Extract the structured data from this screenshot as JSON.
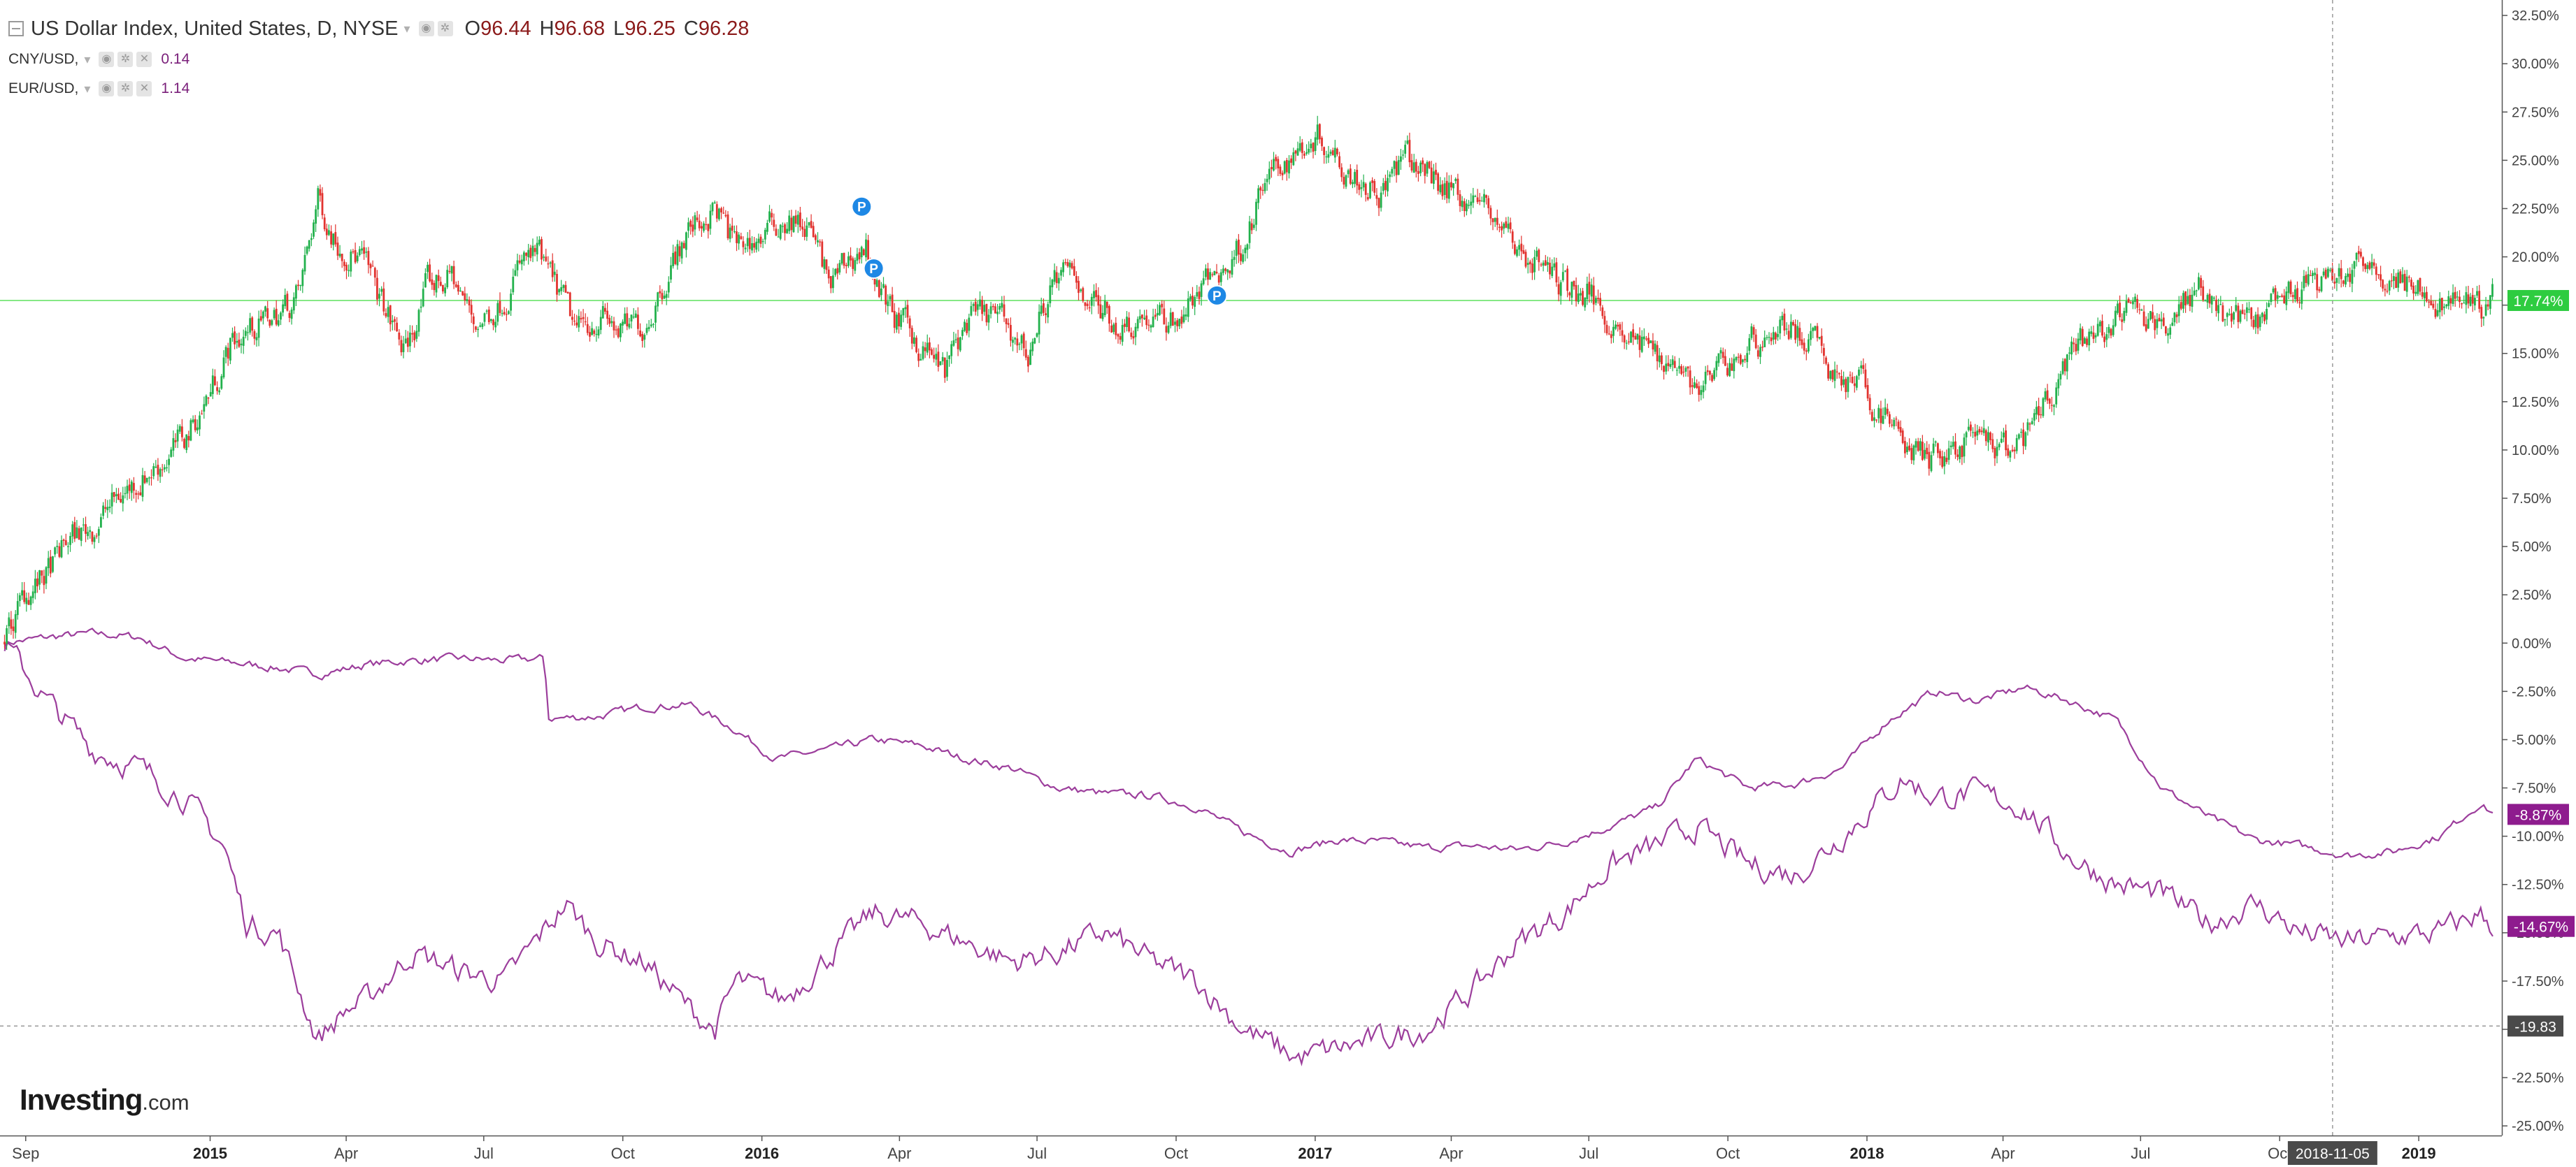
{
  "legend": {
    "main": {
      "title": "US Dollar Index, United States, D, NYSE",
      "o_label": "O",
      "o": "96.44",
      "h_label": "H",
      "h": "96.68",
      "l_label": "L",
      "l": "96.25",
      "c_label": "C",
      "c": "96.28"
    },
    "cny": {
      "name": "CNY/USD,",
      "value": "0.14"
    },
    "eur": {
      "name": "EUR/USD,",
      "value": "1.14"
    }
  },
  "logo": {
    "name": "Investing",
    "domain": ".com"
  },
  "crosshair": {
    "date_label": "2018-11-05",
    "price_label": "-19.83"
  },
  "colors": {
    "up": "#22b14c",
    "down": "#e2332f",
    "series": "#9c3e9c",
    "price_line": "#86e886",
    "last_green": "#2ecc40",
    "last_purple": "#8e1c8e",
    "axis_text": "#444444"
  },
  "chart_data": {
    "type": "candlestick-with-lines",
    "x_axis": {
      "range": [
        "2014-08-15",
        "2019-02-25"
      ],
      "ticks": [
        {
          "label": "Sep",
          "date": "2014-09-01",
          "bold": false
        },
        {
          "label": "2015",
          "date": "2015-01-01",
          "bold": true
        },
        {
          "label": "Apr",
          "date": "2015-04-01",
          "bold": false
        },
        {
          "label": "Jul",
          "date": "2015-07-01",
          "bold": false
        },
        {
          "label": "Oct",
          "date": "2015-10-01",
          "bold": false
        },
        {
          "label": "2016",
          "date": "2016-01-01",
          "bold": true
        },
        {
          "label": "Apr",
          "date": "2016-04-01",
          "bold": false
        },
        {
          "label": "Jul",
          "date": "2016-07-01",
          "bold": false
        },
        {
          "label": "Oct",
          "date": "2016-10-01",
          "bold": false
        },
        {
          "label": "2017",
          "date": "2017-01-01",
          "bold": true
        },
        {
          "label": "Apr",
          "date": "2017-04-01",
          "bold": false
        },
        {
          "label": "Jul",
          "date": "2017-07-01",
          "bold": false
        },
        {
          "label": "Oct",
          "date": "2017-10-01",
          "bold": false
        },
        {
          "label": "2018",
          "date": "2018-01-01",
          "bold": true
        },
        {
          "label": "Apr",
          "date": "2018-04-01",
          "bold": false
        },
        {
          "label": "Jul",
          "date": "2018-07-01",
          "bold": false
        },
        {
          "label": "Oct",
          "date": "2018-10-01",
          "bold": false
        },
        {
          "label": "2019",
          "date": "2019-01-01",
          "bold": true
        }
      ]
    },
    "y_axis": {
      "unit": "%",
      "range": [
        -25.5,
        33.3
      ],
      "ticks": [
        32.5,
        30,
        27.5,
        25,
        22.5,
        20,
        17.5,
        15,
        12.5,
        10,
        7.5,
        5,
        2.5,
        0,
        -2.5,
        -5,
        -7.5,
        -10,
        -12.5,
        -15,
        -17.5,
        -20,
        -22.5,
        -25
      ],
      "tick_labels": [
        "32.50%",
        "30.00%",
        "27.50%",
        "25.00%",
        "22.50%",
        "20.00%",
        "17.50%",
        "15.00%",
        "12.50%",
        "10.00%",
        "7.50%",
        "5.00%",
        "2.50%",
        "0.00%",
        "-2.50%",
        "-5.00%",
        "-7.50%",
        "-10.00%",
        "-12.50%",
        "-15.00%",
        "-17.50%",
        "-20.00%",
        "-22.50%",
        "-25.00%"
      ]
    },
    "series": [
      {
        "name": "US Dollar Index",
        "style": "candles",
        "dates": [
          "2014-08-18",
          "2014-09-01",
          "2014-09-15",
          "2014-10-01",
          "2014-10-15",
          "2014-11-01",
          "2014-11-15",
          "2014-12-01",
          "2014-12-15",
          "2015-01-01",
          "2015-01-15",
          "2015-02-01",
          "2015-02-15",
          "2015-03-01",
          "2015-03-13",
          "2015-03-25",
          "2015-04-10",
          "2015-04-25",
          "2015-05-10",
          "2015-05-25",
          "2015-06-10",
          "2015-06-25",
          "2015-07-10",
          "2015-07-25",
          "2015-08-05",
          "2015-08-20",
          "2015-09-01",
          "2015-09-15",
          "2015-10-01",
          "2015-10-15",
          "2015-11-01",
          "2015-11-15",
          "2015-12-01",
          "2015-12-15",
          "2016-01-01",
          "2016-01-15",
          "2016-02-01",
          "2016-02-15",
          "2016-03-01",
          "2016-03-10",
          "2016-03-20",
          "2016-04-01",
          "2016-04-15",
          "2016-05-01",
          "2016-05-15",
          "2016-06-01",
          "2016-06-15",
          "2016-06-25",
          "2016-07-10",
          "2016-07-25",
          "2016-08-10",
          "2016-08-25",
          "2016-09-10",
          "2016-09-25",
          "2016-10-10",
          "2016-10-25",
          "2016-11-05",
          "2016-11-15",
          "2016-12-01",
          "2016-12-20",
          "2017-01-01",
          "2017-01-15",
          "2017-02-01",
          "2017-02-15",
          "2017-03-01",
          "2017-03-15",
          "2017-04-01",
          "2017-04-15",
          "2017-05-01",
          "2017-05-15",
          "2017-06-01",
          "2017-06-15",
          "2017-07-01",
          "2017-07-15",
          "2017-08-01",
          "2017-08-15",
          "2017-09-01",
          "2017-09-10",
          "2017-09-25",
          "2017-10-10",
          "2017-10-25",
          "2017-11-10",
          "2017-11-25",
          "2017-12-10",
          "2017-12-25",
          "2018-01-10",
          "2018-01-25",
          "2018-02-10",
          "2018-02-25",
          "2018-03-10",
          "2018-03-25",
          "2018-04-10",
          "2018-04-25",
          "2018-05-10",
          "2018-05-25",
          "2018-06-10",
          "2018-06-25",
          "2018-07-10",
          "2018-07-25",
          "2018-08-10",
          "2018-08-25",
          "2018-09-10",
          "2018-09-25",
          "2018-10-10",
          "2018-10-25",
          "2018-11-10",
          "2018-11-25",
          "2018-12-10",
          "2018-12-25",
          "2019-01-10",
          "2019-01-25",
          "2019-02-10",
          "2019-02-20"
        ],
        "values": [
          0.0,
          2.5,
          3.5,
          5.5,
          6.0,
          7.5,
          8.5,
          9.5,
          10.5,
          13.0,
          15.5,
          16.5,
          17.0,
          18.0,
          23.0,
          21.0,
          20.0,
          17.5,
          15.0,
          18.5,
          19.0,
          16.5,
          17.5,
          19.5,
          20.0,
          18.0,
          16.0,
          17.0,
          16.0,
          16.5,
          19.5,
          21.5,
          22.5,
          20.5,
          21.0,
          22.0,
          21.5,
          18.5,
          20.0,
          20.5,
          18.0,
          16.5,
          15.5,
          14.0,
          16.5,
          17.0,
          16.0,
          15.0,
          18.5,
          19.0,
          17.5,
          16.5,
          17.0,
          16.5,
          17.5,
          19.0,
          19.5,
          21.0,
          24.0,
          25.5,
          26.5,
          25.5,
          24.0,
          23.5,
          25.0,
          24.5,
          23.5,
          23.0,
          22.0,
          20.5,
          19.5,
          18.5,
          18.0,
          17.0,
          15.5,
          15.0,
          14.5,
          13.0,
          14.0,
          15.0,
          16.0,
          16.5,
          15.5,
          14.0,
          13.5,
          12.0,
          10.5,
          9.5,
          10.0,
          10.5,
          10.0,
          10.0,
          11.5,
          14.0,
          15.5,
          16.5,
          17.0,
          16.5,
          17.5,
          18.5,
          17.0,
          16.5,
          17.0,
          18.0,
          18.5,
          19.0,
          19.5,
          19.0,
          18.5,
          17.5,
          18.0,
          17.5,
          17.74
        ]
      },
      {
        "name": "CNY/USD",
        "style": "line",
        "dates": [
          "2014-08-18",
          "2014-09-15",
          "2014-10-15",
          "2014-11-15",
          "2014-12-15",
          "2015-01-15",
          "2015-02-15",
          "2015-03-15",
          "2015-04-15",
          "2015-05-15",
          "2015-06-15",
          "2015-07-15",
          "2015-08-10",
          "2015-08-13",
          "2015-09-15",
          "2015-10-15",
          "2015-11-15",
          "2015-12-15",
          "2016-01-10",
          "2016-02-15",
          "2016-03-15",
          "2016-04-15",
          "2016-05-15",
          "2016-06-15",
          "2016-07-15",
          "2016-08-15",
          "2016-09-15",
          "2016-10-15",
          "2016-11-15",
          "2016-12-15",
          "2017-01-15",
          "2017-02-15",
          "2017-03-15",
          "2017-04-15",
          "2017-05-15",
          "2017-06-15",
          "2017-07-15",
          "2017-08-15",
          "2017-09-10",
          "2017-10-15",
          "2017-11-15",
          "2017-12-15",
          "2018-01-15",
          "2018-02-15",
          "2018-03-15",
          "2018-04-15",
          "2018-05-15",
          "2018-06-15",
          "2018-07-15",
          "2018-08-15",
          "2018-09-15",
          "2018-10-15",
          "2018-11-15",
          "2018-12-15",
          "2019-01-15",
          "2019-02-10",
          "2019-02-20"
        ],
        "values": [
          0.0,
          0.3,
          0.5,
          0.3,
          -0.8,
          -1.0,
          -1.3,
          -1.6,
          -1.1,
          -0.9,
          -0.8,
          -0.9,
          -0.8,
          -3.9,
          -3.8,
          -3.3,
          -3.2,
          -4.5,
          -6.0,
          -5.5,
          -5.0,
          -5.3,
          -6.0,
          -6.5,
          -7.5,
          -7.8,
          -7.9,
          -8.5,
          -9.8,
          -10.8,
          -10.2,
          -10.3,
          -10.6,
          -10.5,
          -10.7,
          -10.3,
          -9.5,
          -8.5,
          -6.0,
          -7.5,
          -7.3,
          -6.5,
          -4.0,
          -2.5,
          -3.0,
          -2.3,
          -3.0,
          -4.0,
          -7.5,
          -9.0,
          -10.2,
          -10.5,
          -11.0,
          -10.8,
          -10.0,
          -8.3,
          -8.87
        ]
      },
      {
        "name": "EUR/USD",
        "style": "line",
        "dates": [
          "2014-08-18",
          "2014-09-15",
          "2014-10-15",
          "2014-11-15",
          "2014-12-15",
          "2015-01-10",
          "2015-01-25",
          "2015-02-15",
          "2015-03-13",
          "2015-04-01",
          "2015-04-15",
          "2015-05-15",
          "2015-06-15",
          "2015-07-15",
          "2015-08-24",
          "2015-09-15",
          "2015-10-15",
          "2015-11-15",
          "2015-12-01",
          "2015-12-15",
          "2016-01-15",
          "2016-02-10",
          "2016-03-15",
          "2016-04-15",
          "2016-05-15",
          "2016-06-15",
          "2016-07-15",
          "2016-08-15",
          "2016-09-15",
          "2016-10-15",
          "2016-11-15",
          "2016-12-20",
          "2017-01-15",
          "2017-02-15",
          "2017-03-15",
          "2017-04-15",
          "2017-05-15",
          "2017-06-15",
          "2017-07-15",
          "2017-08-15",
          "2017-09-10",
          "2017-10-15",
          "2017-11-15",
          "2017-12-15",
          "2018-01-25",
          "2018-02-15",
          "2018-03-15",
          "2018-04-15",
          "2018-05-15",
          "2018-06-15",
          "2018-07-15",
          "2018-08-15",
          "2018-09-15",
          "2018-10-15",
          "2018-11-15",
          "2018-12-15",
          "2019-01-15",
          "2019-02-10",
          "2019-02-20"
        ],
        "values": [
          0.0,
          -3.0,
          -5.5,
          -6.5,
          -8.0,
          -10.5,
          -14.5,
          -15.0,
          -20.5,
          -19.0,
          -18.5,
          -16.0,
          -17.0,
          -17.5,
          -13.5,
          -15.5,
          -16.5,
          -19.0,
          -20.0,
          -17.5,
          -18.5,
          -16.5,
          -14.0,
          -14.5,
          -15.5,
          -16.5,
          -16.0,
          -15.0,
          -16.5,
          -17.5,
          -20.0,
          -21.5,
          -21.0,
          -20.5,
          -20.0,
          -18.0,
          -15.5,
          -14.0,
          -11.5,
          -10.5,
          -9.5,
          -11.5,
          -12.0,
          -10.0,
          -7.0,
          -8.0,
          -7.8,
          -8.5,
          -11.0,
          -12.5,
          -13.0,
          -14.5,
          -13.5,
          -15.0,
          -15.5,
          -15.2,
          -15.0,
          -14.0,
          -14.67
        ]
      }
    ],
    "last_values": {
      "US Dollar Index": "17.74%",
      "CNY/USD": "-8.87%",
      "EUR/USD": "-14.67%"
    },
    "price_line": 17.74,
    "crosshair_value": -19.83,
    "crosshair_date": "2018-11-05",
    "markers": [
      {
        "label": "P",
        "date": "2016-03-07",
        "value": 22.6
      },
      {
        "label": "P",
        "date": "2016-03-15",
        "value": 19.4
      },
      {
        "label": "P",
        "date": "2016-10-28",
        "value": 18.0
      }
    ],
    "grid": false,
    "legend": "top-left"
  }
}
